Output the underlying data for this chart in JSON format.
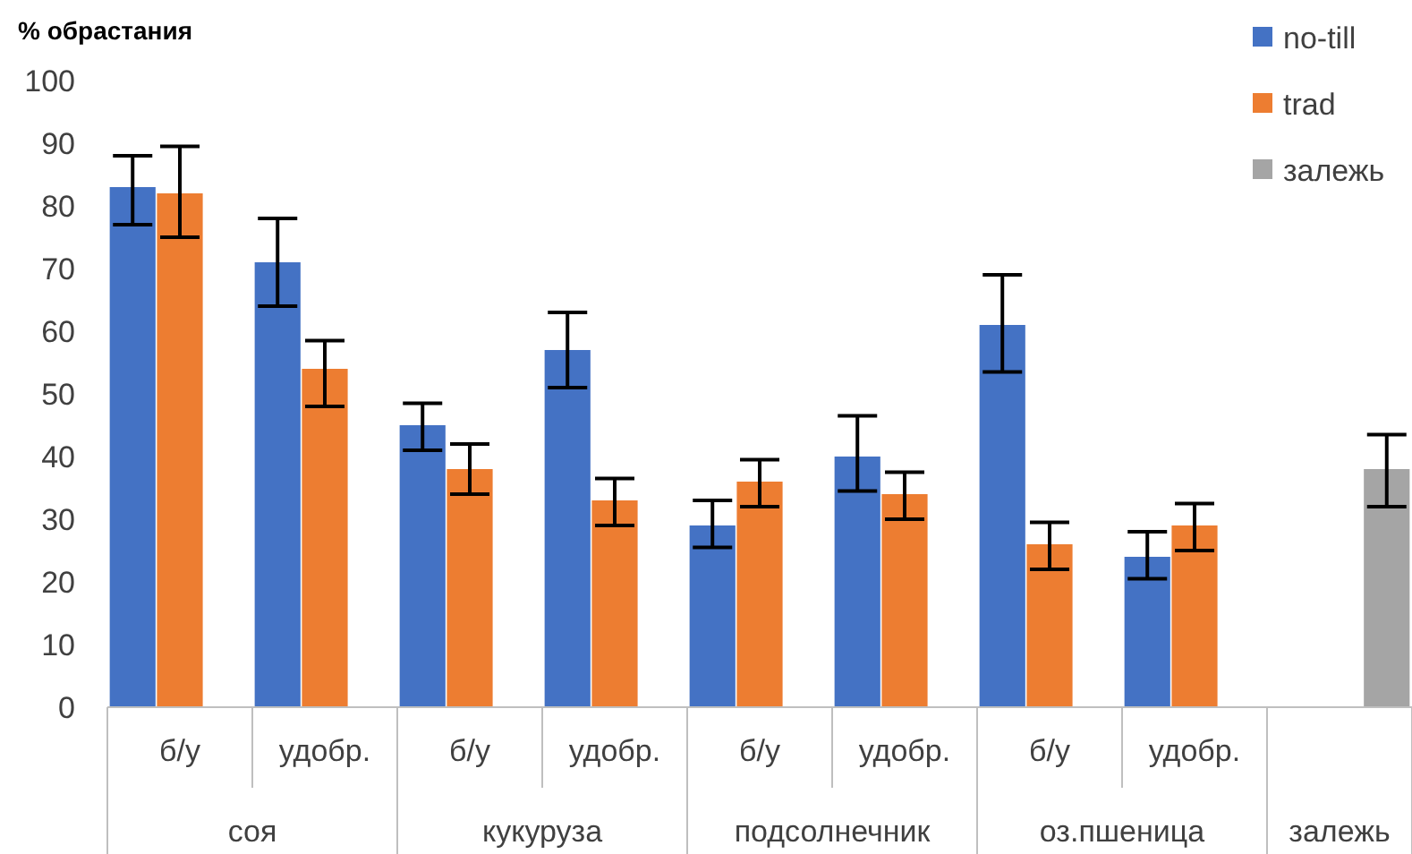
{
  "chart_data": {
    "type": "bar",
    "ylabel": "% обрастания",
    "categories": [
      "б/у",
      "удобр.",
      "б/у",
      "удобр.",
      "б/у",
      "удобр.",
      "б/у",
      "удобр.",
      null
    ],
    "annotations": [
      "соя",
      "кукуруза",
      "подсолнечник",
      "оз.пшеница",
      "залежь"
    ],
    "series": [
      {
        "name": "no-till",
        "color": "#4472c4",
        "values": [
          83,
          71,
          45,
          57,
          29,
          40,
          61,
          24,
          null
        ],
        "errors": [
          [
            77,
            88
          ],
          [
            64,
            78
          ],
          [
            41,
            48.5
          ],
          [
            51,
            63
          ],
          [
            25.5,
            33
          ],
          [
            34.5,
            46.5
          ],
          [
            53.5,
            69
          ],
          [
            20.5,
            28
          ],
          null
        ]
      },
      {
        "name": "trad",
        "color": "#ed7d31",
        "values": [
          82,
          54,
          38,
          33,
          36,
          34,
          26,
          29,
          null
        ],
        "errors": [
          [
            75,
            89.5
          ],
          [
            48,
            58.5
          ],
          [
            34,
            42
          ],
          [
            29,
            36.5
          ],
          [
            32,
            39.5
          ],
          [
            30,
            37.5
          ],
          [
            22,
            29.5
          ],
          [
            25,
            32.5
          ],
          null
        ]
      },
      {
        "name": "залежь",
        "color": "#a5a5a5",
        "values": [
          null,
          null,
          null,
          null,
          null,
          null,
          null,
          null,
          38
        ],
        "errors": [
          null,
          null,
          null,
          null,
          null,
          null,
          null,
          null,
          [
            32,
            43.5
          ]
        ]
      }
    ],
    "ylim": [
      0,
      100
    ],
    "yticks": [
      0,
      10,
      20,
      30,
      40,
      50,
      60,
      70,
      80,
      90,
      100
    ],
    "legend": "top right"
  }
}
